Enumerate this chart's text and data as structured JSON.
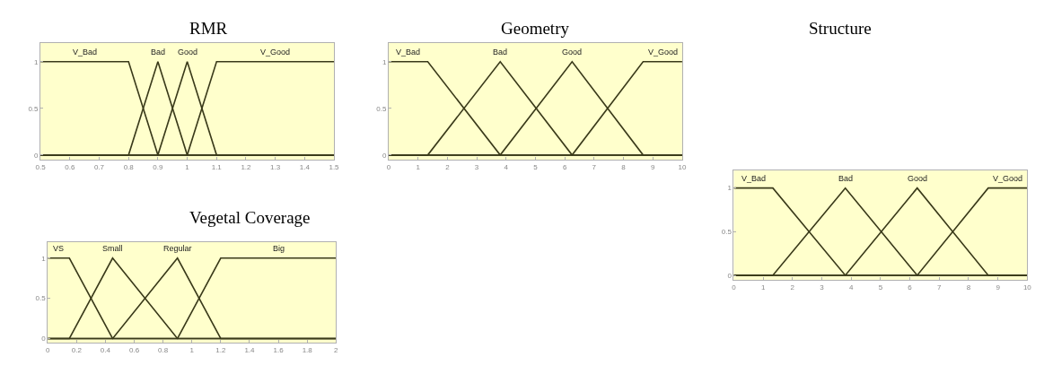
{
  "chart_data": [
    {
      "type": "line",
      "title": "RMR",
      "xlim": [
        0.5,
        1.5
      ],
      "ylim": [
        -0.05,
        1.2
      ],
      "xticks": [
        0.5,
        0.6,
        0.7,
        0.8,
        0.9,
        1,
        1.1,
        1.2,
        1.3,
        1.4,
        1.5
      ],
      "yticks": [
        0,
        0.5,
        1
      ],
      "grid": false,
      "series": [
        {
          "name": "V_Bad",
          "color": "#3a3a1a",
          "x": [
            0.5,
            0.8,
            0.9,
            1.5
          ],
          "values": [
            1,
            1,
            0,
            0
          ]
        },
        {
          "name": "Bad",
          "color": "#3a3a1a",
          "x": [
            0.5,
            0.8,
            0.9,
            1.0,
            1.5
          ],
          "values": [
            0,
            0,
            1,
            0,
            0
          ]
        },
        {
          "name": "Good",
          "color": "#3a3a1a",
          "x": [
            0.5,
            0.9,
            1.0,
            1.1,
            1.5
          ],
          "values": [
            0,
            0,
            1,
            0,
            0
          ]
        },
        {
          "name": "V_Good",
          "color": "#3a3a1a",
          "x": [
            0.5,
            1.0,
            1.1,
            1.5
          ],
          "values": [
            0,
            0,
            1,
            1
          ]
        }
      ]
    },
    {
      "type": "line",
      "title": "Geometry",
      "xlim": [
        0,
        10
      ],
      "ylim": [
        -0.05,
        1.2
      ],
      "xticks": [
        0,
        1,
        2,
        3,
        4,
        5,
        6,
        7,
        8,
        9,
        10
      ],
      "yticks": [
        0,
        0.5,
        1
      ],
      "grid": false,
      "series": [
        {
          "name": "V_Bad",
          "color": "#3a3a1a",
          "x": [
            0,
            1.33,
            3.8,
            10
          ],
          "values": [
            1,
            1,
            0,
            0
          ]
        },
        {
          "name": "Bad",
          "color": "#3a3a1a",
          "x": [
            0,
            1.33,
            3.8,
            6.25,
            10
          ],
          "values": [
            0,
            0,
            1,
            0,
            0
          ]
        },
        {
          "name": "Good",
          "color": "#3a3a1a",
          "x": [
            0,
            3.8,
            6.25,
            8.67,
            10
          ],
          "values": [
            0,
            0,
            1,
            0,
            0
          ]
        },
        {
          "name": "V_Good",
          "color": "#3a3a1a",
          "x": [
            0,
            6.25,
            8.67,
            10
          ],
          "values": [
            0,
            0,
            1,
            1
          ]
        }
      ]
    },
    {
      "type": "line",
      "title": "Structure",
      "xlim": [
        0,
        10
      ],
      "ylim": [
        -0.05,
        1.2
      ],
      "xticks": [
        0,
        1,
        2,
        3,
        4,
        5,
        6,
        7,
        8,
        9,
        10
      ],
      "yticks": [
        0,
        0.5,
        1
      ],
      "grid": false,
      "series": [
        {
          "name": "V_Bad",
          "color": "#3a3a1a",
          "x": [
            0,
            1.33,
            3.8,
            10
          ],
          "values": [
            1,
            1,
            0,
            0
          ]
        },
        {
          "name": "Bad",
          "color": "#3a3a1a",
          "x": [
            0,
            1.33,
            3.8,
            6.25,
            10
          ],
          "values": [
            0,
            0,
            1,
            0,
            0
          ]
        },
        {
          "name": "Good",
          "color": "#3a3a1a",
          "x": [
            0,
            3.8,
            6.25,
            8.67,
            10
          ],
          "values": [
            0,
            0,
            1,
            0,
            0
          ]
        },
        {
          "name": "V_Good",
          "color": "#3a3a1a",
          "x": [
            0,
            6.25,
            8.67,
            10
          ],
          "values": [
            0,
            0,
            1,
            1
          ]
        }
      ]
    },
    {
      "type": "line",
      "title": "Vegetal Coverage",
      "xlim": [
        0,
        2
      ],
      "ylim": [
        -0.05,
        1.2
      ],
      "xticks": [
        0,
        0.2,
        0.4,
        0.6,
        0.8,
        1,
        1.2,
        1.4,
        1.6,
        1.8,
        2
      ],
      "yticks": [
        0,
        0.5,
        1
      ],
      "grid": false,
      "series": [
        {
          "name": "VS",
          "color": "#3a3a1a",
          "x": [
            0,
            0.15,
            0.45,
            2
          ],
          "values": [
            1,
            1,
            0,
            0
          ]
        },
        {
          "name": "Small",
          "color": "#3a3a1a",
          "x": [
            0,
            0.15,
            0.45,
            0.9,
            2
          ],
          "values": [
            0,
            0,
            1,
            0,
            0
          ]
        },
        {
          "name": "Regular",
          "color": "#3a3a1a",
          "x": [
            0,
            0.45,
            0.9,
            1.2,
            2
          ],
          "values": [
            0,
            0,
            1,
            0,
            0
          ]
        },
        {
          "name": "Big",
          "color": "#3a3a1a",
          "x": [
            0,
            0.9,
            1.2,
            2
          ],
          "values": [
            0,
            0,
            1,
            1
          ]
        }
      ]
    }
  ]
}
